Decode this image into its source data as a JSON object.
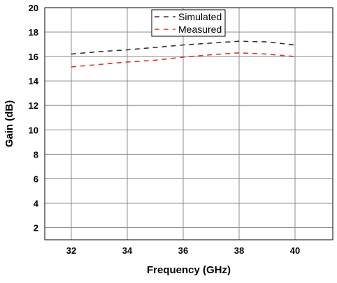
{
  "chart_data": {
    "type": "line",
    "title": "",
    "xlabel": "Frequency (GHz)",
    "ylabel": "Gain (dB)",
    "xlim": [
      31.05,
      41.35
    ],
    "ylim": [
      1,
      20
    ],
    "xticks": [
      32,
      34,
      36,
      38,
      40
    ],
    "yticks": [
      2,
      4,
      6,
      8,
      10,
      12,
      14,
      16,
      18,
      20
    ],
    "grid": true,
    "legend_position": "top-center",
    "series": [
      {
        "name": "Simulated",
        "color": "#303030",
        "line_style": "dashed",
        "x": [
          32,
          33,
          34,
          35,
          36,
          37,
          38,
          39,
          40
        ],
        "y": [
          16.2,
          16.4,
          16.55,
          16.75,
          16.95,
          17.1,
          17.25,
          17.2,
          16.95
        ]
      },
      {
        "name": "Measured",
        "color": "#e0302a",
        "line_style": "dashed",
        "x": [
          32,
          33,
          34,
          35,
          36,
          37,
          38,
          39,
          40
        ],
        "y": [
          15.15,
          15.35,
          15.55,
          15.7,
          15.95,
          16.15,
          16.3,
          16.2,
          16.0
        ]
      }
    ]
  }
}
